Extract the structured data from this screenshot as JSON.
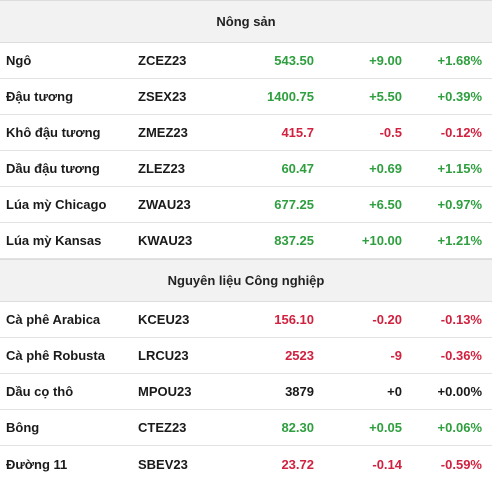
{
  "sections": [
    {
      "title": "Nông sản",
      "rows": [
        {
          "name": "Ngô",
          "code": "ZCEZ23",
          "price": "543.50",
          "change": "+9.00",
          "pct": "+1.68%",
          "dir": "up"
        },
        {
          "name": "Đậu tương",
          "code": "ZSEX23",
          "price": "1400.75",
          "change": "+5.50",
          "pct": "+0.39%",
          "dir": "up"
        },
        {
          "name": "Khô đậu tương",
          "code": "ZMEZ23",
          "price": "415.7",
          "change": "-0.5",
          "pct": "-0.12%",
          "dir": "down"
        },
        {
          "name": "Dầu đậu tương",
          "code": "ZLEZ23",
          "price": "60.47",
          "change": "+0.69",
          "pct": "+1.15%",
          "dir": "up"
        },
        {
          "name": "Lúa mỳ Chicago",
          "code": "ZWAU23",
          "price": "677.25",
          "change": "+6.50",
          "pct": "+0.97%",
          "dir": "up"
        },
        {
          "name": "Lúa mỳ Kansas",
          "code": "KWAU23",
          "price": "837.25",
          "change": "+10.00",
          "pct": "+1.21%",
          "dir": "up"
        }
      ]
    },
    {
      "title": "Nguyên liệu Công nghiệp",
      "rows": [
        {
          "name": "Cà phê Arabica",
          "code": "KCEU23",
          "price": "156.10",
          "change": "-0.20",
          "pct": "-0.13%",
          "dir": "down"
        },
        {
          "name": "Cà phê Robusta",
          "code": "LRCU23",
          "price": "2523",
          "change": "-9",
          "pct": "-0.36%",
          "dir": "down"
        },
        {
          "name": "Dầu cọ thô",
          "code": "MPOU23",
          "price": "3879",
          "change": "+0",
          "pct": "+0.00%",
          "dir": "flat"
        },
        {
          "name": "Bông",
          "code": "CTEZ23",
          "price": "82.30",
          "change": "+0.05",
          "pct": "+0.06%",
          "dir": "up"
        },
        {
          "name": "Đường 11",
          "code": "SBEV23",
          "price": "23.72",
          "change": "-0.14",
          "pct": "-0.59%",
          "dir": "down"
        }
      ]
    }
  ],
  "colors": {
    "up": "#2e9e3e",
    "down": "#d0213f",
    "flat": "#1a1a1a",
    "header_bg": "#f2f2f2"
  }
}
